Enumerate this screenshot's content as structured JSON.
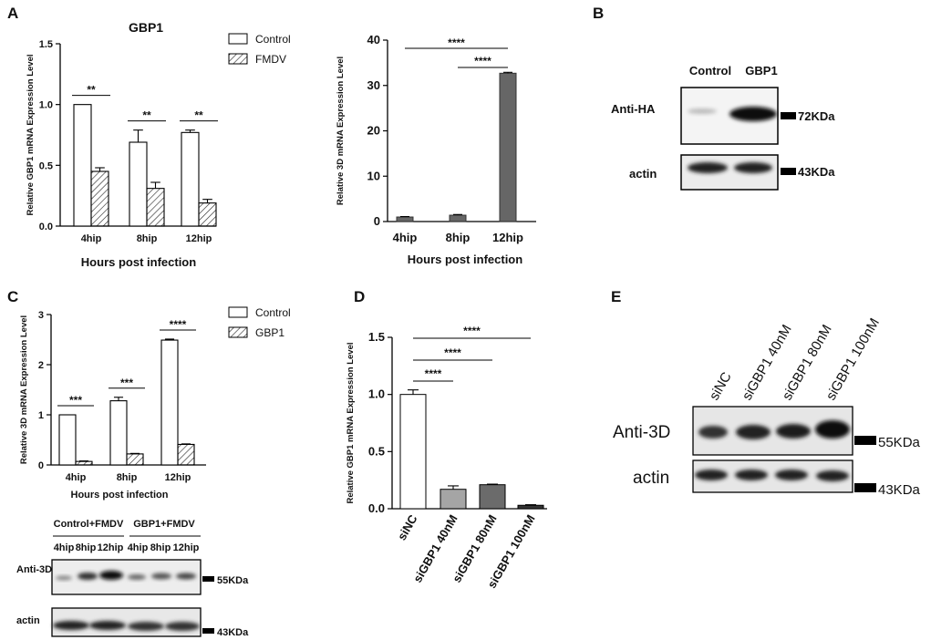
{
  "panels": {
    "a": "A",
    "b": "B",
    "c": "C",
    "d": "D",
    "e": "E"
  },
  "chart_data": [
    {
      "id": "A-left",
      "type": "bar",
      "title": "GBP1",
      "categories": [
        "4hip",
        "8hip",
        "12hip"
      ],
      "series": [
        {
          "name": "Control",
          "values": [
            1.0,
            0.69,
            0.77
          ],
          "errors": [
            0.0,
            0.1,
            0.02
          ]
        },
        {
          "name": "FMDV",
          "values": [
            0.45,
            0.31,
            0.19
          ],
          "errors": [
            0.03,
            0.05,
            0.03
          ]
        }
      ],
      "xlabel": "Hours post infection",
      "ylabel": "Relative GBP1 mRNA Expression Level",
      "ylim": [
        0,
        1.5
      ],
      "yticks": [
        "0.0",
        "0.5",
        "1.0",
        "1.5"
      ],
      "significance": [
        "**",
        "**",
        "**"
      ],
      "legend_position": "top-right"
    },
    {
      "id": "A-right",
      "type": "bar",
      "categories": [
        "4hip",
        "8hip",
        "12hip"
      ],
      "values": [
        1.0,
        1.4,
        32.7
      ],
      "errors": [
        0.1,
        0.15,
        0.2
      ],
      "xlabel": "Hours post infection",
      "ylabel": "Relative 3D mRNA Expression Level",
      "ylim": [
        0,
        40
      ],
      "yticks": [
        "0",
        "10",
        "20",
        "30",
        "40"
      ],
      "significance": [
        "****",
        "****"
      ]
    },
    {
      "id": "C-top",
      "type": "bar",
      "categories": [
        "4hip",
        "8hip",
        "12hip"
      ],
      "series": [
        {
          "name": "Control",
          "values": [
            1.0,
            1.28,
            2.49
          ],
          "errors": [
            0.0,
            0.07,
            0.02
          ]
        },
        {
          "name": "GBP1",
          "values": [
            0.07,
            0.22,
            0.41
          ],
          "errors": [
            0.01,
            0.01,
            0.01
          ]
        }
      ],
      "xlabel": "Hours post infection",
      "ylabel": "Relative 3D mRNA Expression Level",
      "ylim": [
        0,
        3
      ],
      "yticks": [
        "0",
        "1",
        "2",
        "3"
      ],
      "significance": [
        "***",
        "***",
        "****"
      ],
      "legend_position": "top-right"
    },
    {
      "id": "D",
      "type": "bar",
      "categories": [
        "siNC",
        "siGBP1 40nM",
        "siGBP1 80nM",
        "siGBP1 100nM"
      ],
      "values": [
        1.0,
        0.17,
        0.21,
        0.03
      ],
      "errors": [
        0.04,
        0.03,
        0.005,
        0.005
      ],
      "colors": [
        "#ffffff",
        "#a5a5a5",
        "#6b6b6b",
        "#333333"
      ],
      "ylabel": "Relative GBP1 mRNA Expression Level",
      "ylim": [
        0,
        1.5
      ],
      "yticks": [
        "0.0",
        "0.5",
        "1.0",
        "1.5"
      ],
      "significance": [
        "****",
        "****",
        "****"
      ]
    }
  ],
  "blots": {
    "b": {
      "lanes": [
        "Control",
        "GBP1"
      ],
      "rows": [
        {
          "label": "Anti-HA",
          "size": "72KDa"
        },
        {
          "label": "actin",
          "size": "43KDa"
        }
      ]
    },
    "c": {
      "groups": [
        "Control+FMDV",
        "GBP1+FMDV"
      ],
      "lanes": [
        "4hip",
        "8hip",
        "12hip",
        "4hip",
        "8hip",
        "12hip"
      ],
      "rows": [
        {
          "label": "Anti-3D",
          "size": "55KDa"
        },
        {
          "label": "actin",
          "size": "43KDa"
        }
      ]
    },
    "e": {
      "lanes": [
        "siNC",
        "siGBP1 40nM",
        "siGBP1 80nM",
        "siGBP1 100nM"
      ],
      "rows": [
        {
          "label": "Anti-3D",
          "size": "55KDa"
        },
        {
          "label": "actin",
          "size": "43KDa"
        }
      ]
    }
  }
}
